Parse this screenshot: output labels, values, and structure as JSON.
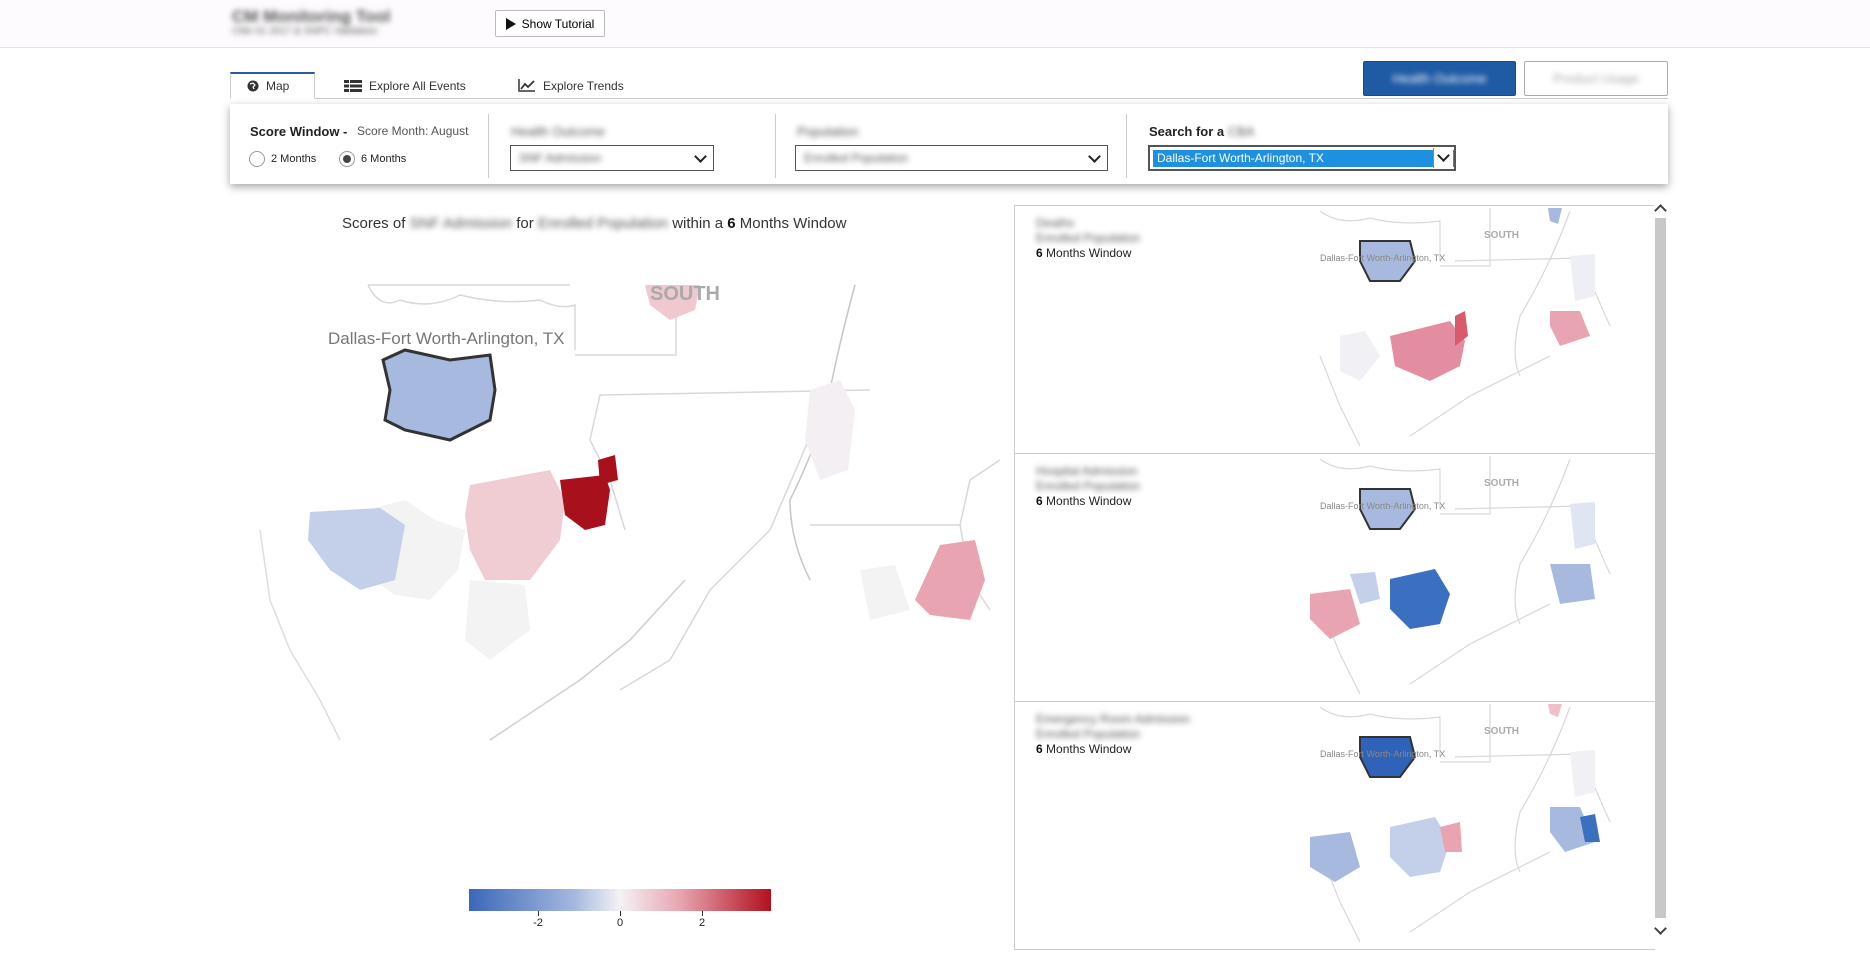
{
  "header": {
    "app_title": "CM Monitoring Tool",
    "app_subtitle": "CMs 01 2017 & SNPC Validation",
    "tutorial_label": "Show Tutorial"
  },
  "tabs": [
    {
      "label": "Map",
      "icon": "globe-icon",
      "active": true
    },
    {
      "label": "Explore All Events",
      "icon": "table-icon",
      "active": false
    },
    {
      "label": "Explore Trends",
      "icon": "line-chart-icon",
      "active": false
    }
  ],
  "mode_buttons": {
    "health": "Health Outcome",
    "product": "Product Usage"
  },
  "filters": {
    "score_window_label": "Score Window -",
    "score_month": "Score Month: August",
    "option_2": "2 Months",
    "option_6": "6 Months",
    "selected_window": "6 Months",
    "outcome_label": "Health Outcome",
    "outcome_value": "SNF Admission",
    "population_label": "Population",
    "population_value": "Enrolled Population",
    "search_label": "Search for a",
    "search_label_blur": "CBA",
    "search_value": "Dallas-Fort Worth-Arlington, TX"
  },
  "main": {
    "title_prefix": "Scores of",
    "title_outcome": "SNF Admission",
    "title_for": "for",
    "title_population": "Enrolled Population",
    "title_within": "within a",
    "title_number": "6",
    "title_suffix": "Months Window",
    "region_label": "SOUTH",
    "city_label": "Dallas-Fort Worth-Arlington, TX"
  },
  "legend": {
    "ticks": [
      "-2",
      "0",
      "2"
    ],
    "colors": [
      "#3b67b8",
      "#f4f2f4",
      "#b2101f"
    ]
  },
  "mini_maps": [
    {
      "title": "Deaths",
      "population": "Enrolled Population",
      "window_number": "6",
      "window_text": "Months Window",
      "region_label": "SOUTH",
      "city_label": "Dallas-Fort Worth-Arlington, TX"
    },
    {
      "title": "Hospital Admission",
      "population": "Enrolled Population",
      "window_number": "6",
      "window_text": "Months Window",
      "region_label": "SOUTH",
      "city_label": "Dallas-Fort Worth-Arlington, TX"
    },
    {
      "title": "Emergency Room Admission",
      "population": "Enrolled Population",
      "window_number": "6",
      "window_text": "Months Window",
      "region_label": "SOUTH",
      "city_label": "Dallas-Fort Worth-Arlington, TX"
    }
  ]
}
